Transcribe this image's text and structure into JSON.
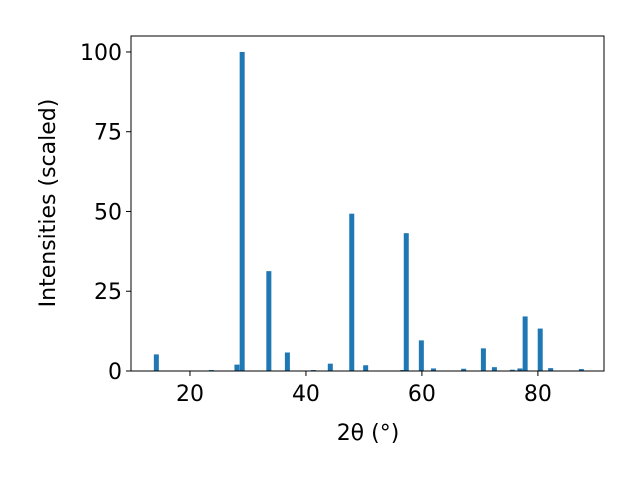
{
  "chart_data": {
    "type": "bar",
    "x": [
      14.2,
      23.7,
      28.1,
      29.0,
      33.6,
      36.8,
      41.3,
      44.2,
      47.9,
      50.3,
      56.7,
      57.3,
      59.9,
      62.0,
      67.2,
      70.6,
      72.5,
      75.6,
      76.9,
      77.8,
      80.4,
      82.2,
      87.5
    ],
    "values": [
      5.2,
      0.3,
      2.0,
      100,
      31.3,
      5.8,
      0.3,
      2.3,
      49.3,
      1.8,
      0.3,
      43.2,
      9.6,
      0.8,
      0.7,
      7.1,
      1.2,
      0.4,
      0.8,
      17.1,
      13.3,
      0.9,
      0.6
    ],
    "color": "#1f77b4",
    "xlabel": "2θ (°)",
    "ylabel": "Intensities (scaled)",
    "xlim": [
      9.83,
      91.4
    ],
    "ylim": [
      0,
      105
    ],
    "xticks": [
      20,
      40,
      60,
      80
    ],
    "yticks": [
      0,
      25,
      50,
      75,
      100
    ]
  }
}
